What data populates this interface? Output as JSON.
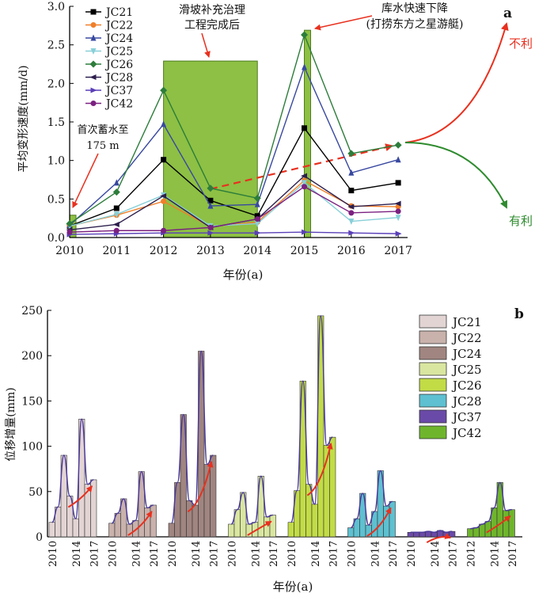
{
  "panel_a": {
    "letter": "a",
    "ylabel": "平均变形速度(mm/d)",
    "xlabel": "年份(a)",
    "annotation_first_impoundment": [
      "首次蓄水至",
      "175 m"
    ],
    "annotation_reinforcement": [
      "滑坡补充治理",
      "工程完成后"
    ],
    "annotation_drawdown": [
      "库水快速下降",
      "(打捞东方之星游艇)"
    ],
    "label_unfavorable": "不利",
    "label_favorable": "有利"
  },
  "panel_b": {
    "letter": "b",
    "ylabel": "位移增量(mm)",
    "xlabel": "年份(a)"
  },
  "colors": {
    "green_bar": "#8dc044",
    "green_dark": "#2e8b2e",
    "red_arrow": "#e8311f",
    "purple_curve": "#4b3a9a"
  },
  "chart_data": [
    {
      "type": "line",
      "title": "",
      "xlabel": "年份(a)",
      "ylabel": "平均变形速度(mm/d)",
      "x": [
        2010,
        2011,
        2012,
        2013,
        2014,
        2015,
        2016,
        2017
      ],
      "xlim": [
        2010,
        2017.2
      ],
      "ylim": [
        0,
        3.0
      ],
      "yticks": [
        "0.0",
        "0.5",
        "1.0",
        "1.5",
        "2.0",
        "2.5",
        "3.0"
      ],
      "xticks": [
        "2010",
        "2011",
        "2012",
        "2013",
        "2014",
        "2015",
        "2016",
        "2017"
      ],
      "legend_position": "top-left",
      "series": [
        {
          "name": "JC21",
          "color": "#000000",
          "marker": "square",
          "values": [
            0.15,
            0.38,
            1.01,
            0.48,
            0.28,
            1.42,
            0.61,
            0.71
          ]
        },
        {
          "name": "JC22",
          "color": "#f07f2a",
          "marker": "circle",
          "values": [
            0.15,
            0.29,
            0.47,
            0.14,
            0.2,
            0.74,
            0.41,
            0.4
          ]
        },
        {
          "name": "JC24",
          "color": "#3848a0",
          "marker": "triangle-up",
          "values": [
            0.16,
            0.71,
            1.47,
            0.41,
            0.43,
            2.21,
            0.84,
            1.01
          ]
        },
        {
          "name": "JC25",
          "color": "#87cfd8",
          "marker": "triangle-down",
          "values": [
            0.15,
            0.3,
            0.55,
            0.15,
            0.18,
            0.71,
            0.21,
            0.26
          ]
        },
        {
          "name": "JC26",
          "color": "#2d7d3b",
          "marker": "diamond",
          "values": [
            0.18,
            0.59,
            1.91,
            0.64,
            0.51,
            2.63,
            1.09,
            1.2
          ]
        },
        {
          "name": "JC28",
          "color": "#2d1f4d",
          "marker": "triangle-left",
          "values": [
            0.1,
            0.17,
            0.54,
            0.13,
            0.24,
            0.8,
            0.4,
            0.44
          ]
        },
        {
          "name": "JC37",
          "color": "#5a3fb8",
          "marker": "triangle-right",
          "values": [
            0.04,
            0.05,
            0.06,
            0.06,
            0.06,
            0.07,
            0.06,
            0.05
          ]
        },
        {
          "name": "JC42",
          "color": "#7b2080",
          "marker": "circle",
          "values": [
            0.07,
            0.09,
            0.09,
            0.13,
            0.24,
            0.66,
            0.32,
            0.34
          ]
        }
      ],
      "highlight_periods": [
        {
          "from": 2010.0,
          "to": 2010.08,
          "height": 0.29
        },
        {
          "from": 2012.0,
          "to": 2014.0,
          "height": 2.29
        },
        {
          "from": 2015.0,
          "to": 2015.08,
          "height": 2.69
        }
      ],
      "trend_dashed_line": {
        "x": [
          2013,
          2017
        ],
        "y": [
          0.63,
          1.22
        ]
      }
    },
    {
      "type": "bar",
      "title": "",
      "xlabel": "年份(a)",
      "ylabel": "位移增量(mm)",
      "ylim": [
        0,
        250
      ],
      "yticks": [
        "0",
        "50",
        "100",
        "150",
        "200",
        "250"
      ],
      "legend_position": "top-right",
      "series": [
        {
          "name": "JC21",
          "color": "#e3d4d4",
          "x_labels": [
            "2010",
            "2014",
            "2017"
          ],
          "values": [
            16,
            33,
            90,
            45,
            20,
            130,
            58,
            63
          ]
        },
        {
          "name": "JC22",
          "color": "#c9b1ac",
          "x_labels": [
            "2010",
            "2014",
            "2017"
          ],
          "values": [
            15,
            26,
            42,
            14,
            18,
            72,
            32,
            35
          ]
        },
        {
          "name": "JC24",
          "color": "#a08580",
          "x_labels": [
            "2010",
            "2014",
            "2017"
          ],
          "values": [
            15,
            60,
            135,
            40,
            35,
            205,
            80,
            90
          ]
        },
        {
          "name": "JC25",
          "color": "#d9e6a0",
          "x_labels": [
            "2010",
            "2014",
            "2017"
          ],
          "values": [
            14,
            30,
            49,
            14,
            16,
            67,
            22,
            24
          ]
        },
        {
          "name": "JC26",
          "color": "#c2dc46",
          "x_labels": [
            "2010",
            "2014",
            "2017"
          ],
          "values": [
            16,
            51,
            172,
            58,
            36,
            244,
            101,
            110
          ]
        },
        {
          "name": "JC28",
          "color": "#5ec0d0",
          "x_labels": [
            "2010",
            "2014",
            "2017"
          ],
          "values": [
            10,
            20,
            48,
            13,
            28,
            73,
            34,
            39
          ]
        },
        {
          "name": "JC37",
          "color": "#6a4aa8",
          "x_labels": [
            "2010",
            "2014",
            "2017"
          ],
          "values": [
            5,
            5,
            5,
            6,
            5,
            7,
            5,
            6
          ]
        },
        {
          "name": "JC42",
          "color": "#6fb52c",
          "x_labels": [
            "2012",
            "2014",
            "2017"
          ],
          "values": [
            9,
            10,
            14,
            17,
            32,
            60,
            29,
            30
          ]
        }
      ]
    }
  ]
}
